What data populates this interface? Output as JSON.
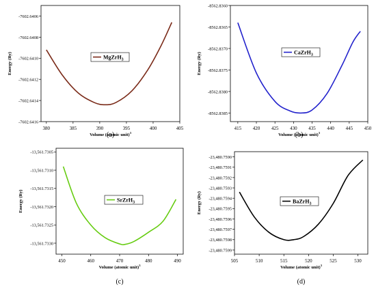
{
  "chart_data": [
    {
      "type": "line",
      "panel_label": "(a)",
      "xlabel": "Volume (atomic unit)",
      "xlabel_superscript": "3",
      "ylabel": "Energy (Ry)",
      "xlim": [
        379,
        405
      ],
      "ylim": [
        -7602.6416,
        -7602.6405
      ],
      "xticks": [
        380,
        385,
        390,
        395,
        400,
        405
      ],
      "yticks": [
        -7602.6416,
        -7602.6414,
        -7602.6412,
        -7602.641,
        -7602.6408,
        -7602.6406
      ],
      "ytick_labels": [
        "-7602.6416",
        "-7602.6414",
        "-7602.6412",
        "-7602.6410",
        "-7602.6408",
        "-7602.6406"
      ],
      "series": [
        {
          "name": "MgZrH",
          "name_subscript": "3",
          "color": "#7a2a18",
          "x": [
            380.0,
            383.0,
            386.0,
            389.0,
            391.0,
            393.0,
            396.0,
            399.0,
            401.5,
            403.5
          ],
          "y": [
            -7602.64092,
            -7602.64116,
            -7602.64133,
            -7602.64142,
            -7602.64144,
            -7602.64142,
            -7602.64131,
            -7602.64111,
            -7602.64088,
            -7602.64066
          ]
        }
      ]
    },
    {
      "type": "line",
      "panel_label": "(b)",
      "xlabel": "Volume (atomic unit)",
      "xlabel_superscript": "3",
      "ylabel": "Energy (Ry)",
      "xlim": [
        413,
        450
      ],
      "ylim": [
        -8562.8387,
        -8562.836
      ],
      "xticks": [
        415,
        420,
        425,
        430,
        435,
        440,
        445,
        450
      ],
      "yticks": [
        -8562.8385,
        -8562.838,
        -8562.8375,
        -8562.837,
        -8562.8365,
        -8562.836
      ],
      "ytick_labels": [
        "-8562.8385",
        "-8562.8380",
        "-8562.8375",
        "-8562.8370",
        "-8562.8365",
        "-8562.8360"
      ],
      "series": [
        {
          "name": "CaZrH",
          "name_subscript": "3",
          "color": "#2222cc",
          "x": [
            415.0,
            420.0,
            425.0,
            429.0,
            432.0,
            435.0,
            439.0,
            443.0,
            446.0,
            448.0
          ],
          "y": [
            -8562.8364,
            -8562.83757,
            -8562.83823,
            -8562.83845,
            -8562.8385,
            -8562.83843,
            -8562.83805,
            -8562.8374,
            -8562.83685,
            -8562.8366
          ]
        }
      ]
    },
    {
      "type": "line",
      "panel_label": "(c)",
      "xlabel": "Volume (atomic unit)",
      "xlabel_superscript": "3",
      "ylabel": "Energy (Ry)",
      "xlim": [
        448,
        492
      ],
      "ylim": [
        -13561.7333,
        -13561.7304
      ],
      "xticks": [
        450,
        460,
        470,
        480,
        490
      ],
      "yticks": [
        -13561.733,
        -13561.7325,
        -13561.732,
        -13561.7315,
        -13561.731,
        -13561.7305
      ],
      "ytick_labels": [
        "-13,561.7330",
        "-13,561.7325",
        "-13,561.7320",
        "-13,561.7315",
        "-13,561.7310",
        "-13,561.7305"
      ],
      "series": [
        {
          "name": "SrZrH",
          "name_subscript": "3",
          "color": "#66cc11",
          "x": [
            450.5,
            455.0,
            460.0,
            465.0,
            470.0,
            472.0,
            475.0,
            480.0,
            485.0,
            489.5
          ],
          "y": [
            -13561.7309,
            -13561.7319,
            -13561.7325,
            -13561.73285,
            -13561.73302,
            -13561.73303,
            -13561.73295,
            -13561.7327,
            -13561.7324,
            -13561.7318
          ]
        }
      ]
    },
    {
      "type": "line",
      "panel_label": "(d)",
      "xlabel": "Volume (atomic unit)",
      "xlabel_superscript": "3",
      "ylabel": "Energy (Ry)",
      "xlim": [
        505,
        532
      ],
      "ylim": [
        -23480.75994,
        -23480.75895
      ],
      "xticks": [
        505,
        510,
        515,
        520,
        525,
        530
      ],
      "yticks": [
        -23480.7599,
        -23480.7598,
        -23480.7597,
        -23480.7596,
        -23480.7595,
        -23480.7594,
        -23480.7593,
        -23480.7592,
        -23480.7591,
        -23480.759
      ],
      "ytick_labels": [
        "-23,480.7599",
        "-23,480.7598",
        "-23,480.7597",
        "-23,480.7596",
        "-23,480.7595",
        "-23,480.7594",
        "-23,480.7593",
        "-23,480.7592",
        "-23,480.7591",
        "-23,480.7590"
      ],
      "series": [
        {
          "name": "BaZrH",
          "name_subscript": "3",
          "color": "#000000",
          "x": [
            506.0,
            509.0,
            512.0,
            515.0,
            517.0,
            519.0,
            522.0,
            525.0,
            528.0,
            531.0
          ],
          "y": [
            -23480.75934,
            -23480.75958,
            -23480.75973,
            -23480.7598,
            -23480.7598,
            -23480.75977,
            -23480.75965,
            -23480.75945,
            -23480.75918,
            -23480.75903
          ]
        }
      ]
    }
  ]
}
